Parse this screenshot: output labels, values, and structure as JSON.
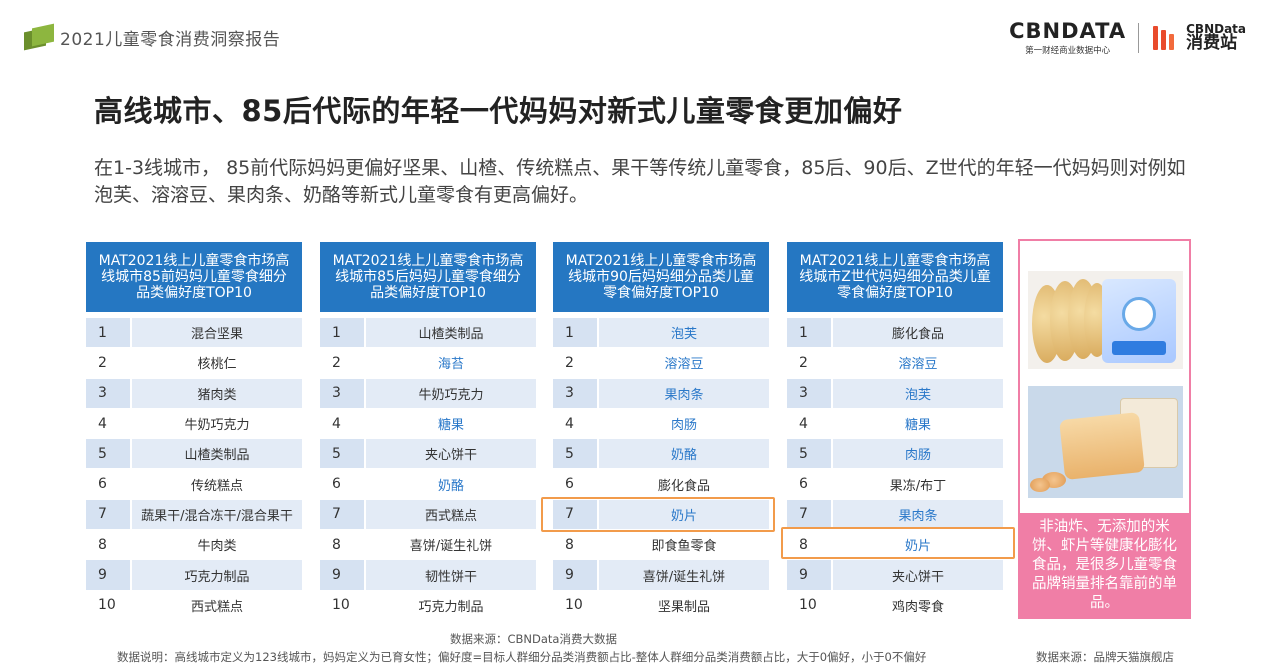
{
  "header": {
    "report_title": "2021儿童零食消费洞察报告",
    "brand_name": "CBNDATA",
    "brand_sub": "第一财经商业数据中心",
    "brand2_en": "CBNData",
    "brand2_cn": "消费站"
  },
  "main_title": "高线城市、85后代际的年轻一代妈妈对新式儿童零食更加偏好",
  "description": "在1-3线城市， 85前代际妈妈更偏好坚果、山楂、传统糕点、果干等传统儿童零食，85后、90后、Z世代的年轻一代妈妈则对例如泡芙、溶溶豆、果肉条、奶酪等新式儿童零食有更高偏好。",
  "tables": [
    {
      "title": "MAT2021线上儿童零食市场高线城市85前妈妈儿童零食细分品类偏好度TOP10",
      "rows": [
        {
          "rank": "1",
          "item": "混合坚果",
          "new": false
        },
        {
          "rank": "2",
          "item": "核桃仁",
          "new": false
        },
        {
          "rank": "3",
          "item": "猪肉类",
          "new": false
        },
        {
          "rank": "4",
          "item": "牛奶巧克力",
          "new": false
        },
        {
          "rank": "5",
          "item": "山楂类制品",
          "new": false
        },
        {
          "rank": "6",
          "item": "传统糕点",
          "new": false
        },
        {
          "rank": "7",
          "item": "蔬果干/混合冻干/混合果干",
          "new": false
        },
        {
          "rank": "8",
          "item": "牛肉类",
          "new": false
        },
        {
          "rank": "9",
          "item": "巧克力制品",
          "new": false
        },
        {
          "rank": "10",
          "item": "西式糕点",
          "new": false
        }
      ]
    },
    {
      "title": "MAT2021线上儿童零食市场高线城市85后妈妈儿童零食细分品类偏好度TOP10",
      "rows": [
        {
          "rank": "1",
          "item": "山楂类制品",
          "new": false
        },
        {
          "rank": "2",
          "item": "海苔",
          "new": true
        },
        {
          "rank": "3",
          "item": "牛奶巧克力",
          "new": false
        },
        {
          "rank": "4",
          "item": "糖果",
          "new": true
        },
        {
          "rank": "5",
          "item": "夹心饼干",
          "new": false
        },
        {
          "rank": "6",
          "item": "奶酪",
          "new": true
        },
        {
          "rank": "7",
          "item": "西式糕点",
          "new": false
        },
        {
          "rank": "8",
          "item": "喜饼/诞生礼饼",
          "new": false
        },
        {
          "rank": "9",
          "item": "韧性饼干",
          "new": false
        },
        {
          "rank": "10",
          "item": "巧克力制品",
          "new": false
        }
      ]
    },
    {
      "title": "MAT2021线上儿童零食市场高线城市90后妈妈细分品类儿童零食偏好度TOP10",
      "rows": [
        {
          "rank": "1",
          "item": "泡芙",
          "new": true
        },
        {
          "rank": "2",
          "item": "溶溶豆",
          "new": true
        },
        {
          "rank": "3",
          "item": "果肉条",
          "new": true
        },
        {
          "rank": "4",
          "item": "肉肠",
          "new": true
        },
        {
          "rank": "5",
          "item": "奶酪",
          "new": true
        },
        {
          "rank": "6",
          "item": "膨化食品",
          "new": false
        },
        {
          "rank": "7",
          "item": "奶片",
          "new": true
        },
        {
          "rank": "8",
          "item": "即食鱼零食",
          "new": false
        },
        {
          "rank": "9",
          "item": "喜饼/诞生礼饼",
          "new": false
        },
        {
          "rank": "10",
          "item": "坚果制品",
          "new": false
        }
      ]
    },
    {
      "title": "MAT2021线上儿童零食市场高线城市Z世代妈妈细分品类儿童零食偏好度TOP10",
      "rows": [
        {
          "rank": "1",
          "item": "膨化食品",
          "new": false
        },
        {
          "rank": "2",
          "item": "溶溶豆",
          "new": true
        },
        {
          "rank": "3",
          "item": "泡芙",
          "new": true
        },
        {
          "rank": "4",
          "item": "糖果",
          "new": true
        },
        {
          "rank": "5",
          "item": "肉肠",
          "new": true
        },
        {
          "rank": "6",
          "item": "果冻/布丁",
          "new": false
        },
        {
          "rank": "7",
          "item": "果肉条",
          "new": true
        },
        {
          "rank": "8",
          "item": "奶片",
          "new": true
        },
        {
          "rank": "9",
          "item": "夹心饼干",
          "new": false
        },
        {
          "rank": "10",
          "item": "鸡肉零食",
          "new": false
        }
      ]
    }
  ],
  "side_note": "非油炸、无添加的米饼、虾片等健康化膨化食品，是很多儿童零食品牌销量排名靠前的单品。",
  "footer": {
    "source_main": "数据来源：CBNData消费大数据",
    "note": "数据说明：高线城市定义为123线城市，妈妈定义为已育女性；偏好度=目标人群细分品类消费额占比-整体人群细分品类消费额占比，大于0偏好，小于0不偏好",
    "source_right": "数据来源：品牌天猫旗舰店"
  },
  "colors": {
    "table_header": "#2577c2",
    "row_tint": "#e3ebf6",
    "new_item_text": "#2a78c9",
    "highlight_border": "#f29b4b",
    "side_panel": "#f07ea6"
  }
}
